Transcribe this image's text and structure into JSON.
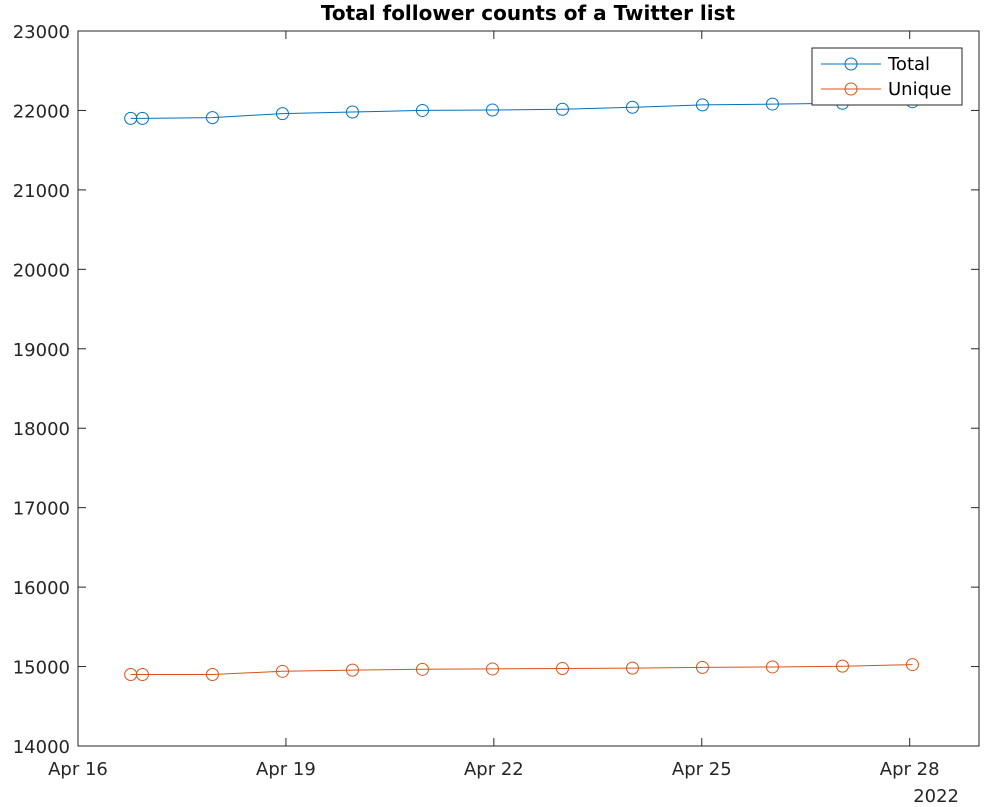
{
  "chart_data": {
    "type": "line",
    "title": "Total follower counts of a Twitter list",
    "xlabel": "",
    "ylabel": "",
    "x_secondary_label": "2022",
    "x_ticks": [
      {
        "value": 0,
        "label": "Apr 16"
      },
      {
        "value": 3,
        "label": "Apr 19"
      },
      {
        "value": 6,
        "label": "Apr 22"
      },
      {
        "value": 9,
        "label": "Apr 25"
      },
      {
        "value": 12,
        "label": "Apr 28"
      }
    ],
    "xlim": [
      0,
      13
    ],
    "ylim": [
      14000,
      23000
    ],
    "y_ticks": [
      14000,
      15000,
      16000,
      17000,
      18000,
      19000,
      20000,
      21000,
      22000,
      23000
    ],
    "grid": false,
    "legend_position": "top-right",
    "series": [
      {
        "name": "Total",
        "color": "#0072BD",
        "marker": "circle",
        "x": [
          0.76,
          0.93,
          1.94,
          2.95,
          3.96,
          4.97,
          5.98,
          6.99,
          8.0,
          9.01,
          10.02,
          11.03,
          12.04
        ],
        "values": [
          21900,
          21900,
          21910,
          21960,
          21980,
          22000,
          22005,
          22015,
          22040,
          22070,
          22080,
          22090,
          22110
        ]
      },
      {
        "name": "Unique",
        "color": "#D95319",
        "marker": "circle",
        "x": [
          0.76,
          0.93,
          1.94,
          2.95,
          3.96,
          4.97,
          5.98,
          6.99,
          8.0,
          9.01,
          10.02,
          11.03,
          12.04
        ],
        "values": [
          14900,
          14900,
          14900,
          14940,
          14955,
          14965,
          14970,
          14975,
          14980,
          14990,
          14995,
          15005,
          15025
        ]
      }
    ]
  }
}
